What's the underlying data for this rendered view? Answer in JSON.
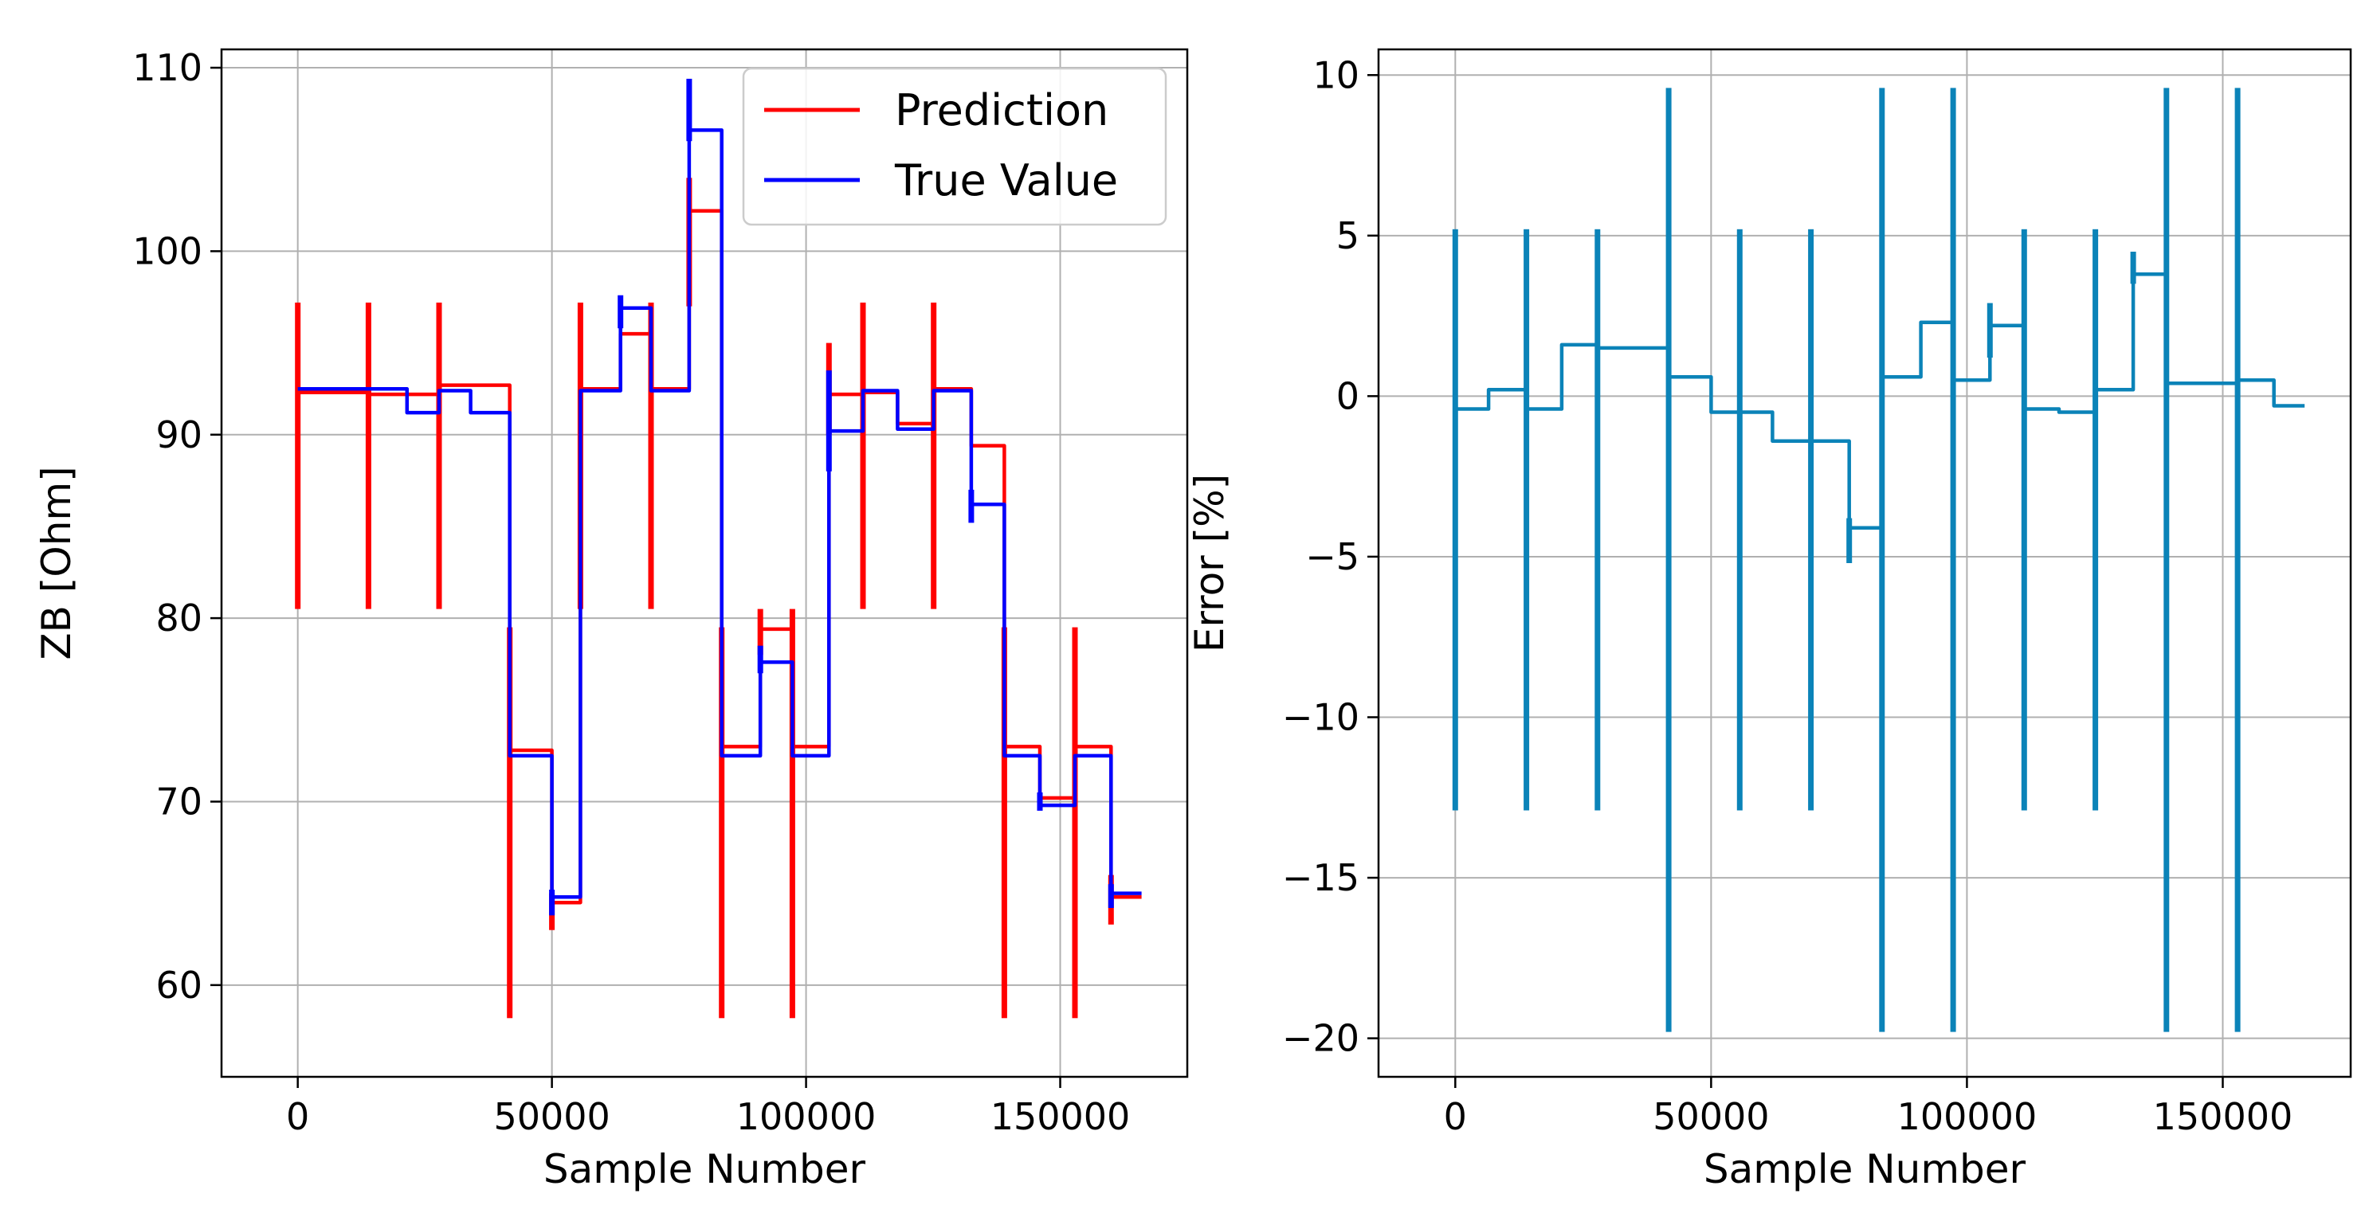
{
  "chart_data": [
    {
      "type": "line",
      "xlabel": "Sample Number",
      "ylabel": "ZB [Ohm]",
      "xlim": [
        -15000,
        175000
      ],
      "ylim": [
        55,
        111
      ],
      "xticks": [
        0,
        50000,
        100000,
        150000
      ],
      "yticks": [
        60,
        70,
        80,
        90,
        100,
        110
      ],
      "grid": true,
      "legend_position": "top-right",
      "colors": {
        "Prediction": "#ff0000",
        "True Value": "#0000ff"
      },
      "series": [
        {
          "name": "Prediction",
          "steps": [
            [
              0,
              92.3
            ],
            [
              13900,
              92.2
            ],
            [
              27800,
              92.7
            ],
            [
              41700,
              72.8
            ],
            [
              50000,
              64.5
            ],
            [
              55600,
              92.5
            ],
            [
              63500,
              95.5
            ],
            [
              69500,
              92.5
            ],
            [
              77000,
              102.2
            ],
            [
              83400,
              73.0
            ],
            [
              91000,
              79.4
            ],
            [
              97300,
              73.0
            ],
            [
              104500,
              92.2
            ],
            [
              111200,
              92.3
            ],
            [
              118000,
              90.6
            ],
            [
              125100,
              92.5
            ],
            [
              132500,
              89.4
            ],
            [
              139000,
              73.0
            ],
            [
              146000,
              70.2
            ],
            [
              152900,
              73.0
            ],
            [
              160000,
              64.8
            ],
            [
              166000,
              64.8
            ]
          ],
          "spikes": [
            [
              0,
              80.5,
              97.2
            ],
            [
              13900,
              80.5,
              97.2
            ],
            [
              27800,
              80.5,
              97.2
            ],
            [
              41700,
              58.2,
              79.5
            ],
            [
              50000,
              63.0,
              65.0
            ],
            [
              55600,
              80.5,
              97.2
            ],
            [
              69500,
              80.5,
              97.2
            ],
            [
              77000,
              97,
              104
            ],
            [
              83400,
              58.2,
              79.5
            ],
            [
              91000,
              78,
              80.5
            ],
            [
              97300,
              58.2,
              80.5
            ],
            [
              104500,
              90,
              95
            ],
            [
              111200,
              80.5,
              97.2
            ],
            [
              125100,
              80.5,
              97.2
            ],
            [
              139000,
              58.2,
              79.5
            ],
            [
              152900,
              58.2,
              79.5
            ],
            [
              160000,
              63.3,
              66
            ]
          ]
        },
        {
          "name": "True Value",
          "steps": [
            [
              0,
              92.5
            ],
            [
              21500,
              91.2
            ],
            [
              27800,
              92.4
            ],
            [
              34000,
              91.2
            ],
            [
              41700,
              72.5
            ],
            [
              50000,
              64.8
            ],
            [
              55600,
              92.4
            ],
            [
              63500,
              96.9
            ],
            [
              69500,
              92.4
            ],
            [
              77000,
              106.6
            ],
            [
              83400,
              72.5
            ],
            [
              91000,
              77.6
            ],
            [
              97300,
              72.5
            ],
            [
              104500,
              90.2
            ],
            [
              111200,
              92.4
            ],
            [
              118000,
              90.3
            ],
            [
              125100,
              92.4
            ],
            [
              132500,
              86.2
            ],
            [
              139000,
              72.5
            ],
            [
              146000,
              69.8
            ],
            [
              152900,
              72.5
            ],
            [
              160000,
              65.0
            ],
            [
              166000,
              65.0
            ]
          ],
          "spikes": [
            [
              50000,
              63.8,
              65.2
            ],
            [
              63500,
              95.8,
              97.6
            ],
            [
              77000,
              106,
              109.4
            ],
            [
              91000,
              77,
              78.5
            ],
            [
              104500,
              88,
              93.5
            ],
            [
              132500,
              85.2,
              87
            ],
            [
              146000,
              69.5,
              70.5
            ],
            [
              160000,
              64.2,
              65.5
            ]
          ]
        }
      ],
      "legend": [
        "Prediction",
        "True Value"
      ]
    },
    {
      "type": "line",
      "xlabel": "Sample Number",
      "ylabel": "Error [%]",
      "xlim": [
        -15000,
        175000
      ],
      "ylim": [
        -21.2,
        10.8
      ],
      "xticks": [
        0,
        50000,
        100000,
        150000
      ],
      "yticks": [
        10,
        5,
        0,
        -5,
        -10,
        -15,
        -20
      ],
      "ytick_labels": [
        "10",
        "5",
        "0",
        "−5",
        "−10",
        "−15",
        "−20"
      ],
      "grid": true,
      "colors": {
        "Error": "#0b83b8"
      },
      "series": [
        {
          "name": "Error",
          "steps": [
            [
              0,
              -0.4
            ],
            [
              6500,
              0.2
            ],
            [
              13900,
              -0.4
            ],
            [
              20800,
              1.6
            ],
            [
              27800,
              1.5
            ],
            [
              41700,
              0.6
            ],
            [
              50000,
              -0.5
            ],
            [
              55600,
              -0.5
            ],
            [
              62000,
              -1.4
            ],
            [
              69500,
              -1.4
            ],
            [
              77000,
              -4.1
            ],
            [
              83400,
              0.6
            ],
            [
              91000,
              2.3
            ],
            [
              97300,
              0.5
            ],
            [
              104500,
              2.2
            ],
            [
              111200,
              -0.4
            ],
            [
              118000,
              -0.5
            ],
            [
              125100,
              0.2
            ],
            [
              132500,
              3.8
            ],
            [
              139000,
              0.4
            ],
            [
              146000,
              0.4
            ],
            [
              152900,
              0.5
            ],
            [
              160000,
              -0.3
            ],
            [
              166000,
              -0.3
            ]
          ],
          "spikes": [
            [
              0,
              -12.9,
              5.2
            ],
            [
              13900,
              -12.9,
              5.2
            ],
            [
              27800,
              -12.9,
              5.2
            ],
            [
              41700,
              -19.8,
              9.6
            ],
            [
              55600,
              -12.9,
              5.2
            ],
            [
              69500,
              -12.9,
              5.2
            ],
            [
              77000,
              -5.2,
              -3.8
            ],
            [
              83400,
              -19.8,
              9.6
            ],
            [
              97300,
              -19.8,
              9.6
            ],
            [
              104500,
              1.2,
              2.9
            ],
            [
              111200,
              -12.9,
              5.2
            ],
            [
              125100,
              -12.9,
              5.2
            ],
            [
              132500,
              3.5,
              4.5
            ],
            [
              139000,
              -19.8,
              9.6
            ],
            [
              152900,
              -19.8,
              9.6
            ]
          ]
        }
      ]
    }
  ]
}
